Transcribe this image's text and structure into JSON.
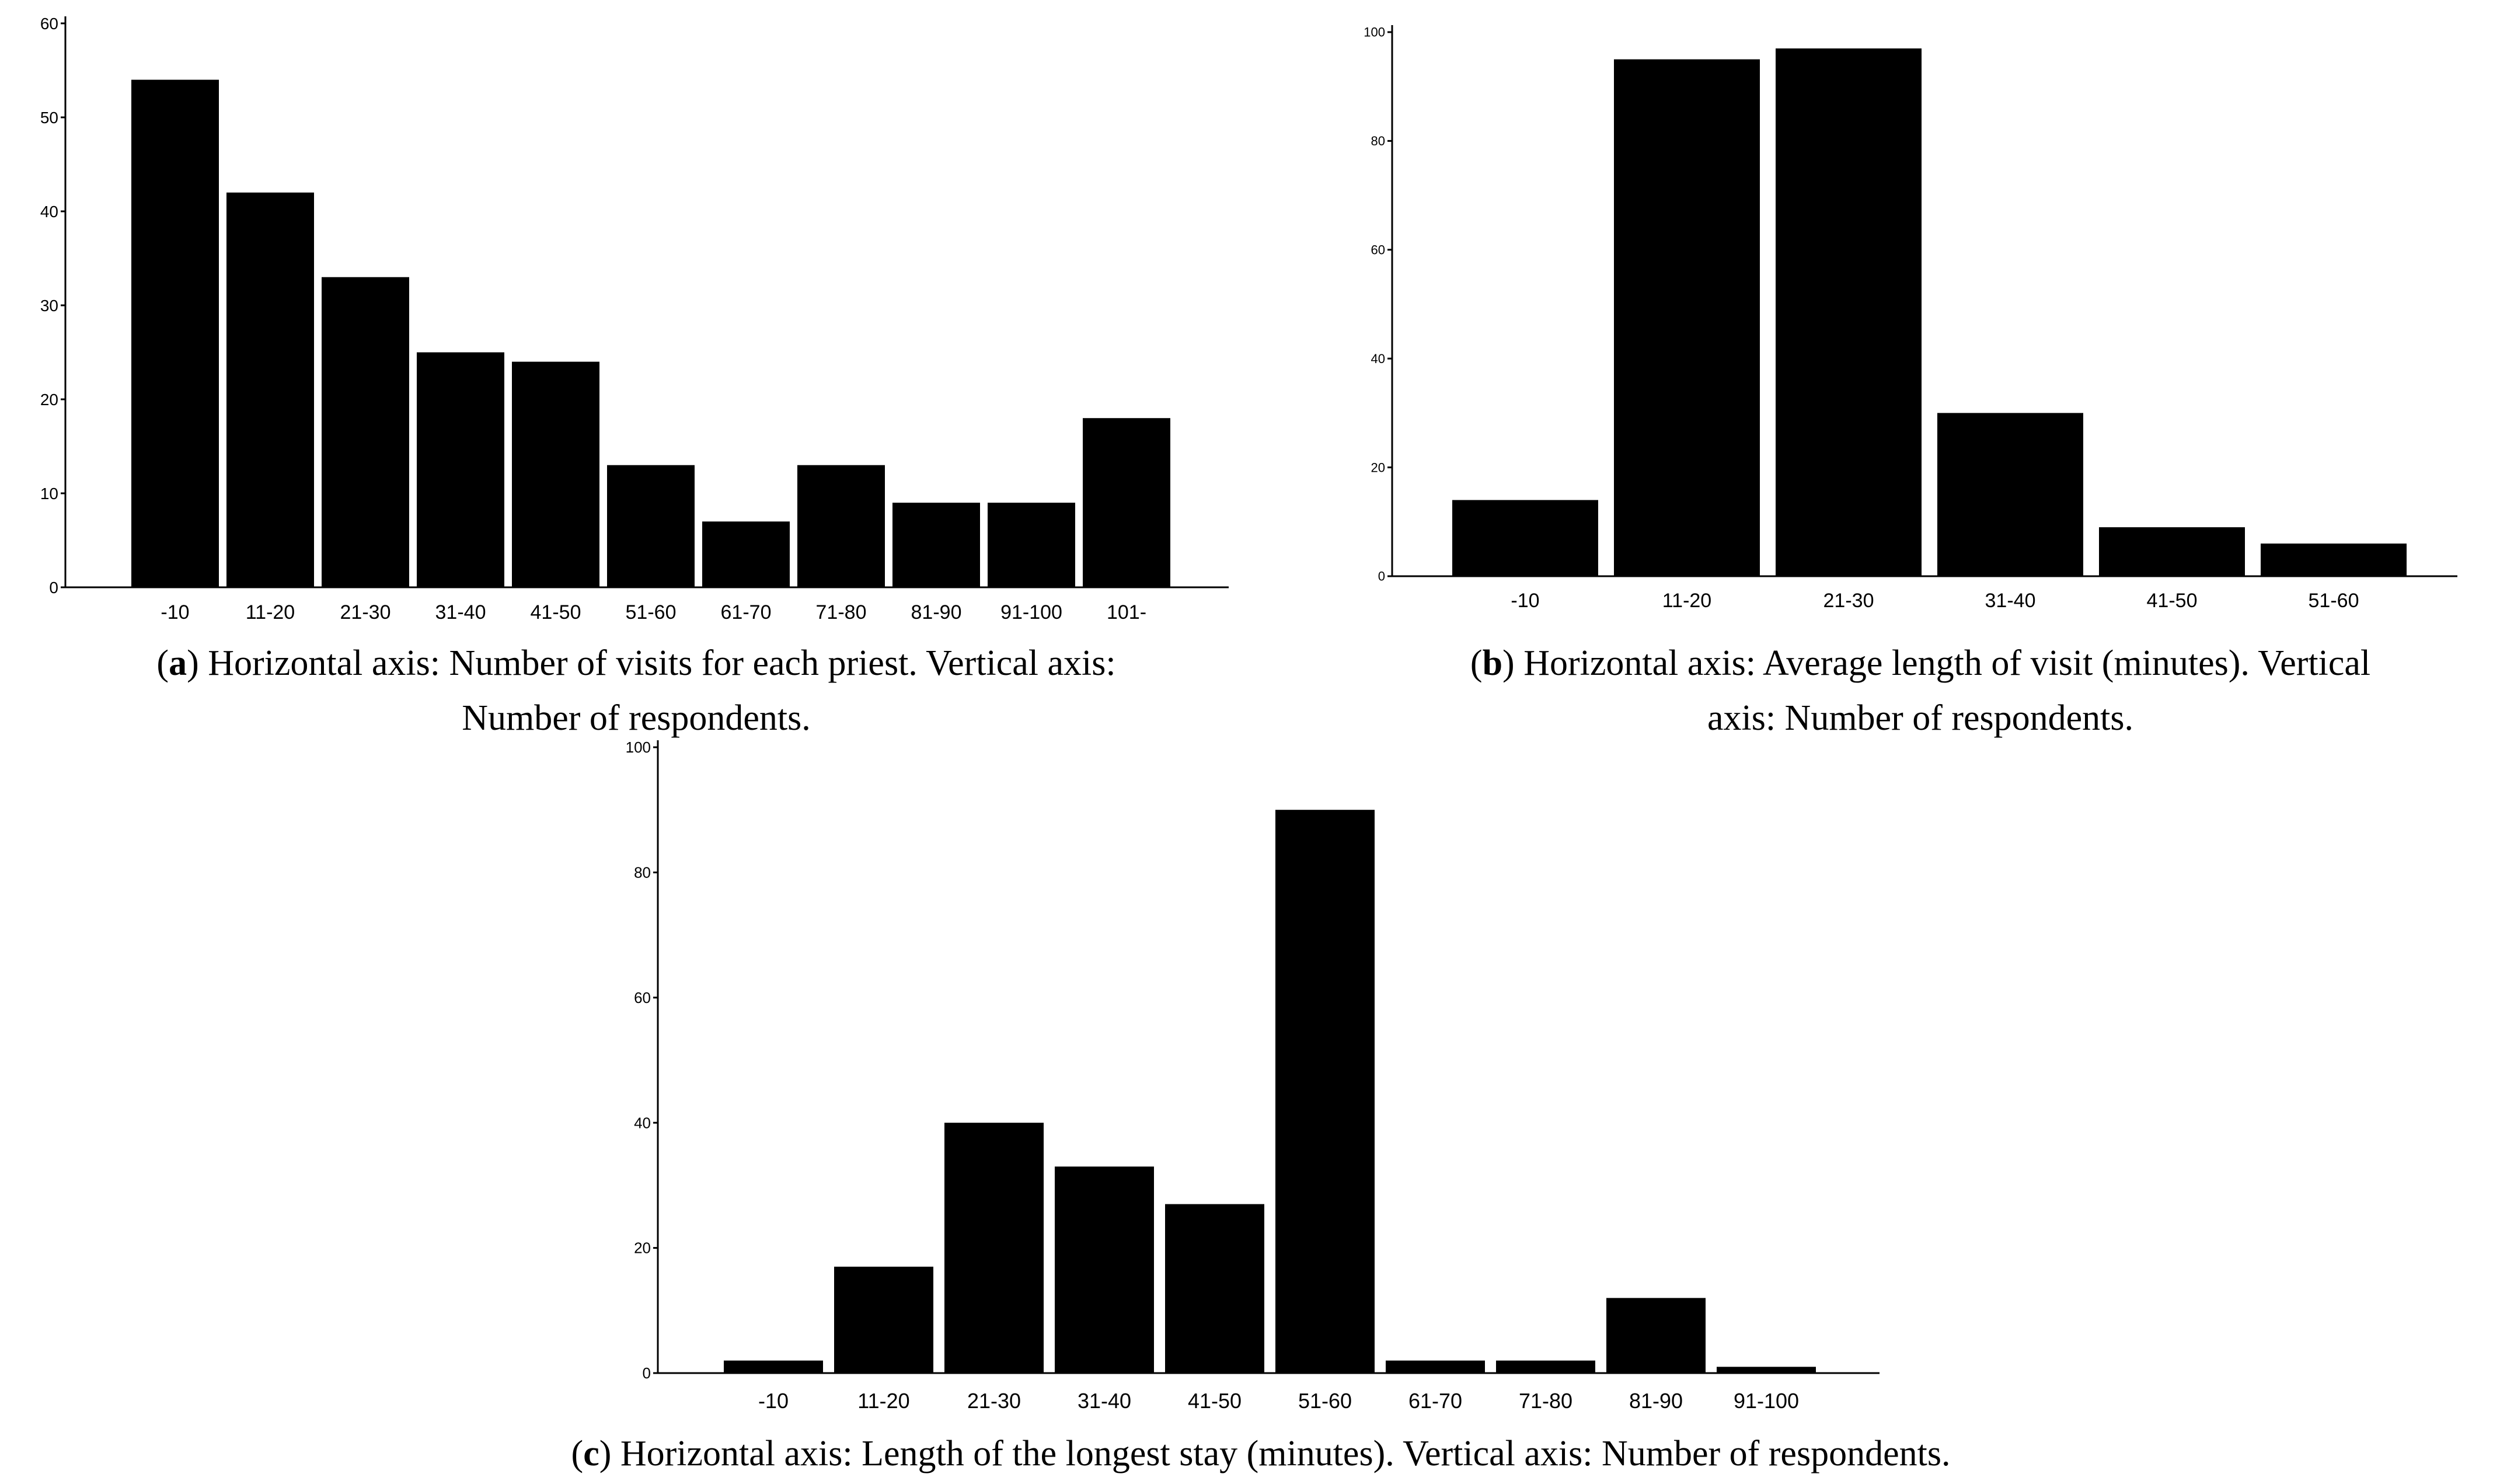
{
  "chart_data": [
    {
      "type": "bar",
      "panel_letter": "a",
      "caption": "Horizontal axis: Number of visits for each priest. Vertical axis: Number of respondents.",
      "caption_lines": [
        "Horizontal axis: Number of visits for each priest. Vertical axis:",
        "Number of respondents."
      ],
      "categories": [
        "-10",
        "11-20",
        "21-30",
        "31-40",
        "41-50",
        "51-60",
        "61-70",
        "71-80",
        "81-90",
        "91-100",
        "101-"
      ],
      "values": [
        54,
        42,
        33,
        25,
        24,
        13,
        7,
        13,
        9,
        9,
        18
      ],
      "ylim": [
        0,
        60
      ],
      "yticks": [
        0,
        10,
        20,
        30,
        40,
        50,
        60
      ],
      "ytick_labels": [
        "0",
        "10",
        "20",
        "30",
        "40",
        "50",
        "60"
      ],
      "grid": false,
      "bar_color": "#000000"
    },
    {
      "type": "bar",
      "panel_letter": "b",
      "caption": "Horizontal axis: Average length of visit (minutes). Vertical axis: Number of respondents.",
      "caption_lines": [
        "Horizontal axis: Average length of visit (minutes). Vertical",
        "axis: Number of respondents."
      ],
      "categories": [
        "-10",
        "11-20",
        "21-30",
        "31-40",
        "41-50",
        "51-60"
      ],
      "values": [
        14,
        95,
        97,
        30,
        9,
        6
      ],
      "ylim": [
        0,
        100
      ],
      "yticks": [
        0,
        20,
        40,
        60,
        80,
        100
      ],
      "ytick_labels": [
        "0",
        "20",
        "40",
        "60",
        "80",
        "100"
      ],
      "grid": false,
      "bar_color": "#000000"
    },
    {
      "type": "bar",
      "panel_letter": "c",
      "caption": "Horizontal axis: Length of the longest stay (minutes). Vertical axis: Number of respondents.",
      "caption_lines": [
        "Horizontal axis: Length of the longest stay (minutes). Vertical axis: Number of respondents."
      ],
      "categories": [
        "-10",
        "11-20",
        "21-30",
        "31-40",
        "41-50",
        "51-60",
        "61-70",
        "71-80",
        "81-90",
        "91-100"
      ],
      "values": [
        2,
        17,
        40,
        33,
        27,
        90,
        2,
        2,
        12,
        1
      ],
      "ylim": [
        0,
        100
      ],
      "yticks": [
        0,
        20,
        40,
        60,
        80,
        100
      ],
      "ytick_labels": [
        "0",
        "20",
        "40",
        "60",
        "80",
        "100"
      ],
      "grid": false,
      "bar_color": "#000000"
    }
  ]
}
